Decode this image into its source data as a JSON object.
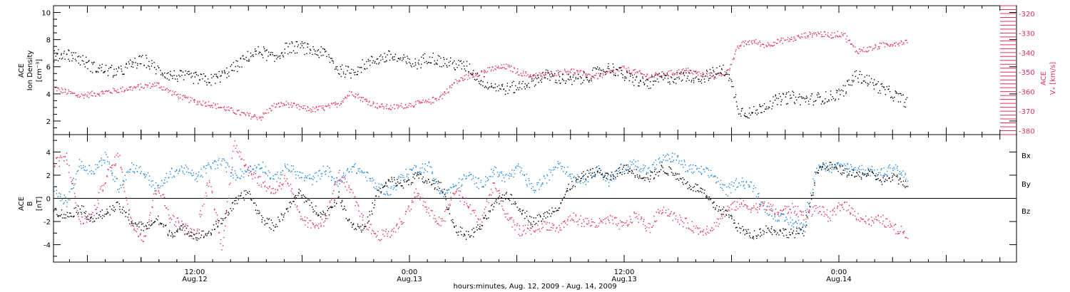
{
  "chart_data": [
    {
      "type": "scatter",
      "panel": "ion-density-and-vx",
      "left_axis": {
        "label_lines": [
          "ACE",
          "Ion Density",
          "[cm⁻³]"
        ],
        "ticks": [
          "2",
          "4",
          "6",
          "8",
          "10"
        ],
        "range": [
          1,
          10.5
        ]
      },
      "right_axis": {
        "label_lines": [
          "ACE",
          "Vₓ [km/s]"
        ],
        "ticks": [
          "-320",
          "-330",
          "-340",
          "-350",
          "-360",
          "-370",
          "-380"
        ],
        "range": [
          -382,
          -316
        ]
      },
      "series": [
        {
          "axis": "left",
          "color": "#000000",
          "x": [
            0,
            1,
            2,
            3,
            4,
            5,
            6,
            7,
            8,
            9,
            10,
            11,
            12,
            13,
            14,
            15,
            16,
            17,
            18,
            19,
            20,
            21,
            22,
            23,
            24,
            25,
            26,
            27,
            28,
            29,
            30,
            31,
            32,
            33,
            34,
            35,
            36,
            37,
            38,
            39,
            40,
            41,
            42,
            43,
            44,
            45,
            46,
            47,
            48,
            49,
            50,
            51,
            52,
            53,
            54,
            55,
            56,
            57,
            58,
            59,
            60,
            61,
            62,
            63,
            64,
            65,
            66
          ],
          "y": [
            6.8,
            7.0,
            6.6,
            6.0,
            5.8,
            5.6,
            6.2,
            6.5,
            5.8,
            5.4,
            5.3,
            5.2,
            5.0,
            5.4,
            6.0,
            6.8,
            7.2,
            6.6,
            7.4,
            7.5,
            7.2,
            7.0,
            5.8,
            5.6,
            6.2,
            6.6,
            6.8,
            6.5,
            6.2,
            6.8,
            6.4,
            6.2,
            6.0,
            5.0,
            4.6,
            4.4,
            4.6,
            5.0,
            5.4,
            5.2,
            5.0,
            5.2,
            5.6,
            6.0,
            5.4,
            5.0,
            4.8,
            5.2,
            5.2,
            5.4,
            5.2,
            5.6,
            5.8,
            2.8,
            2.6,
            3.2,
            3.6,
            3.8,
            3.6,
            3.7,
            3.8,
            4.2,
            5.4,
            5.0,
            4.4,
            3.9,
            3.4
          ]
        },
        {
          "axis": "right",
          "color": "#e0305a",
          "x": [
            0,
            1,
            2,
            3,
            4,
            5,
            6,
            7,
            8,
            9,
            10,
            11,
            12,
            13,
            14,
            15,
            16,
            17,
            18,
            19,
            20,
            21,
            22,
            23,
            24,
            25,
            26,
            27,
            28,
            29,
            30,
            31,
            32,
            33,
            34,
            35,
            36,
            37,
            38,
            39,
            40,
            41,
            42,
            43,
            44,
            45,
            46,
            47,
            48,
            49,
            50,
            51,
            52,
            53,
            54,
            55,
            56,
            57,
            58,
            59,
            60,
            61,
            62,
            63,
            64,
            65,
            66
          ],
          "y": [
            -358,
            -360,
            -362,
            -361,
            -360,
            -359,
            -358,
            -357,
            -356,
            -360,
            -363,
            -365,
            -366,
            -368,
            -370,
            -372,
            -373,
            -367,
            -366,
            -368,
            -369,
            -368,
            -366,
            -360,
            -364,
            -367,
            -368,
            -367,
            -366,
            -365,
            -362,
            -355,
            -352,
            -350,
            -348,
            -347,
            -350,
            -352,
            -351,
            -350,
            -349,
            -351,
            -352,
            -350,
            -348,
            -350,
            -352,
            -351,
            -350,
            -349,
            -351,
            -352,
            -350,
            -336,
            -334,
            -336,
            -334,
            -333,
            -331,
            -330,
            -331,
            -330,
            -339,
            -338,
            -336,
            -335,
            -334
          ]
        }
      ],
      "grid": false
    },
    {
      "type": "scatter",
      "panel": "magnetic-field",
      "left_axis": {
        "label_lines": [
          "ACE",
          "B",
          "[nT]"
        ],
        "ticks": [
          "-4",
          "-2",
          "0",
          "2",
          "4"
        ],
        "range": [
          -5.5,
          5.5
        ]
      },
      "zero_line": true,
      "series": [
        {
          "name": "Bx",
          "color": "#000000",
          "x": [
            0,
            1,
            2,
            3,
            4,
            5,
            6,
            7,
            8,
            9,
            10,
            11,
            12,
            13,
            14,
            15,
            16,
            17,
            18,
            19,
            20,
            21,
            22,
            23,
            24,
            25,
            26,
            27,
            28,
            29,
            30,
            31,
            32,
            33,
            34,
            35,
            36,
            37,
            38,
            39,
            40,
            41,
            42,
            43,
            44,
            45,
            46,
            47,
            48,
            49,
            50,
            51,
            52,
            53,
            54,
            55,
            56,
            57,
            58,
            59,
            60,
            61,
            62,
            63,
            64,
            65,
            66
          ],
          "y": [
            -1.0,
            -1.5,
            -0.8,
            -1.8,
            -1.2,
            -0.6,
            -2.0,
            -2.5,
            -1.8,
            -3.0,
            -2.6,
            -3.2,
            -3.0,
            -1.8,
            -0.4,
            0.6,
            -1.6,
            -2.4,
            -1.0,
            0.6,
            -0.8,
            -1.4,
            0.2,
            -2.2,
            -2.6,
            0.4,
            1.6,
            1.2,
            2.0,
            1.4,
            1.0,
            -2.6,
            -3.2,
            -2.4,
            -0.6,
            0.4,
            -0.8,
            -2.0,
            -1.4,
            -0.6,
            1.2,
            2.0,
            2.4,
            1.8,
            2.6,
            2.2,
            1.8,
            2.6,
            2.2,
            1.2,
            0.8,
            -0.6,
            -1.2,
            -2.6,
            -3.2,
            -2.6,
            -2.8,
            -3.0,
            -2.8,
            2.6,
            2.8,
            2.4,
            2.0,
            2.2,
            1.6,
            1.8,
            1.2
          ]
        },
        {
          "name": "By",
          "color": "#1f86d8",
          "x": [
            0,
            1,
            2,
            3,
            4,
            5,
            6,
            7,
            8,
            9,
            10,
            11,
            12,
            13,
            14,
            15,
            16,
            17,
            18,
            19,
            20,
            21,
            22,
            23,
            24,
            25,
            26,
            27,
            28,
            29,
            30,
            31,
            32,
            33,
            34,
            35,
            36,
            37,
            38,
            39,
            40,
            41,
            42,
            43,
            44,
            45,
            46,
            47,
            48,
            49,
            50,
            51,
            52,
            53,
            54,
            55,
            56,
            57,
            58,
            59,
            60,
            61,
            62,
            63,
            64,
            65,
            66
          ],
          "y": [
            0.8,
            -0.4,
            3.0,
            2.4,
            3.6,
            1.0,
            2.8,
            2.2,
            0.8,
            2.2,
            2.6,
            1.8,
            2.8,
            3.2,
            2.0,
            2.4,
            3.0,
            1.6,
            2.8,
            2.0,
            1.6,
            2.6,
            1.2,
            2.8,
            2.2,
            1.0,
            0.6,
            2.0,
            2.6,
            2.8,
            0.4,
            1.0,
            2.0,
            1.2,
            2.4,
            1.8,
            2.6,
            0.8,
            1.6,
            3.2,
            2.0,
            1.6,
            2.6,
            1.4,
            2.8,
            3.0,
            2.4,
            3.4,
            3.6,
            2.6,
            2.4,
            2.0,
            0.6,
            1.6,
            1.0,
            -0.8,
            -1.6,
            -2.0,
            -2.4,
            3.0,
            2.6,
            2.8,
            2.6,
            2.4,
            2.2,
            2.8,
            1.6
          ]
        },
        {
          "name": "Bz",
          "color": "#e0305a",
          "x": [
            0,
            1,
            2,
            3,
            4,
            5,
            6,
            7,
            8,
            9,
            10,
            11,
            12,
            13,
            14,
            15,
            16,
            17,
            18,
            19,
            20,
            21,
            22,
            23,
            24,
            25,
            26,
            27,
            28,
            29,
            30,
            31,
            32,
            33,
            34,
            35,
            36,
            37,
            38,
            39,
            40,
            41,
            42,
            43,
            44,
            45,
            46,
            47,
            48,
            49,
            50,
            51,
            52,
            53,
            54,
            55,
            56,
            57,
            58,
            59,
            60,
            61,
            62,
            63,
            64,
            65,
            66
          ],
          "y": [
            3.0,
            3.6,
            -2.0,
            -1.4,
            1.8,
            3.8,
            -2.2,
            -3.4,
            1.2,
            -1.6,
            -2.4,
            -3.2,
            1.8,
            -4.2,
            4.8,
            2.6,
            1.4,
            0.6,
            1.8,
            -1.6,
            -2.4,
            -1.8,
            2.2,
            0.4,
            -2.0,
            -3.2,
            -3.0,
            -1.8,
            0.6,
            -1.2,
            -2.2,
            0.8,
            -0.6,
            -2.0,
            1.4,
            -1.6,
            -2.8,
            -2.6,
            -2.2,
            -2.6,
            -1.6,
            -2.0,
            -2.2,
            -1.8,
            -2.4,
            -1.4,
            -2.6,
            -0.8,
            -1.6,
            -2.2,
            -2.8,
            -2.4,
            -1.0,
            -0.4,
            -0.8,
            -0.6,
            -1.2,
            -0.8,
            -1.4,
            -0.8,
            -1.6,
            -0.4,
            -1.4,
            -2.0,
            -1.8,
            -2.6,
            -3.0
          ]
        }
      ],
      "legend": {
        "placement": "right",
        "labels": [
          "Bx",
          "By",
          "Bz"
        ]
      },
      "grid": false
    }
  ],
  "x_axis": {
    "major_ticks": [
      {
        "time": "12:00",
        "date": "Aug.12"
      },
      {
        "time": "0:00",
        "date": "Aug.13"
      },
      {
        "time": "12:00",
        "date": "Aug.13"
      },
      {
        "time": "0:00",
        "date": "Aug.14"
      }
    ],
    "title": "hours:minutes, Aug. 12, 2009 - Aug. 14, 2009"
  }
}
